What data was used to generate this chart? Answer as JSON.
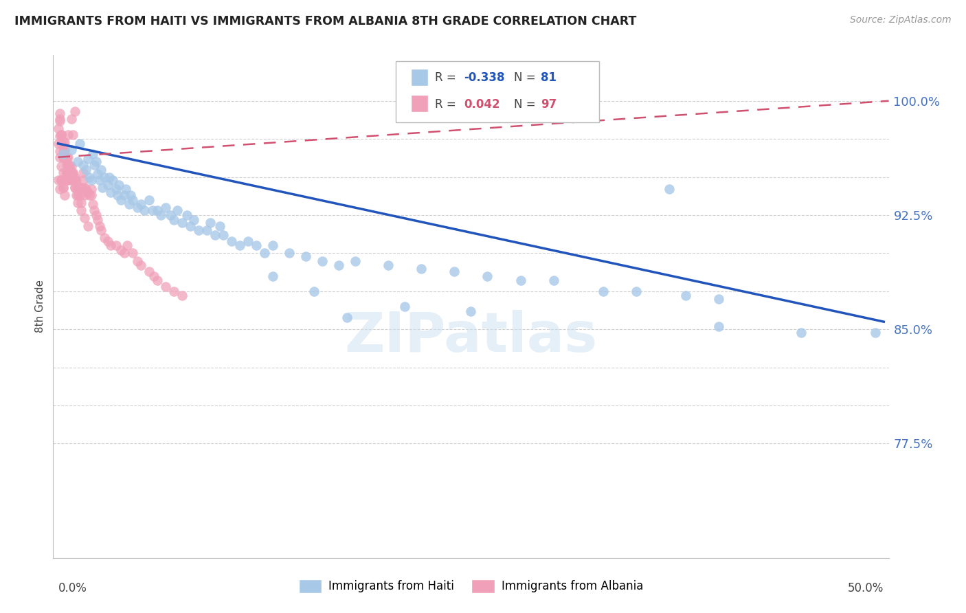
{
  "title": "IMMIGRANTS FROM HAITI VS IMMIGRANTS FROM ALBANIA 8TH GRADE CORRELATION CHART",
  "source": "Source: ZipAtlas.com",
  "ylabel": "8th Grade",
  "watermark": "ZIPatlas",
  "background_color": "#ffffff",
  "grid_color": "#d0d0d0",
  "tick_label_color": "#4472c4",
  "haiti_color": "#a8c8e8",
  "albania_color": "#f0a0b8",
  "haiti_line_color": "#2255bb",
  "albania_line_color": "#d05070",
  "ylim": [
    0.7,
    1.03
  ],
  "xlim": [
    -0.003,
    0.503
  ],
  "ytick_positions": [
    0.775,
    0.8,
    0.825,
    0.85,
    0.875,
    0.9,
    0.925,
    0.95,
    0.975,
    1.0
  ],
  "ytick_labels": [
    "77.5%",
    "",
    "",
    "85.0%",
    "",
    "",
    "92.5%",
    "",
    "",
    "100.0%"
  ],
  "haiti_x": [
    0.003,
    0.008,
    0.012,
    0.013,
    0.015,
    0.017,
    0.018,
    0.019,
    0.02,
    0.021,
    0.022,
    0.023,
    0.024,
    0.025,
    0.026,
    0.027,
    0.028,
    0.03,
    0.031,
    0.032,
    0.033,
    0.035,
    0.036,
    0.037,
    0.038,
    0.04,
    0.041,
    0.043,
    0.044,
    0.045,
    0.048,
    0.05,
    0.052,
    0.055,
    0.057,
    0.06,
    0.062,
    0.065,
    0.068,
    0.07,
    0.072,
    0.075,
    0.078,
    0.08,
    0.082,
    0.085,
    0.09,
    0.092,
    0.095,
    0.098,
    0.1,
    0.105,
    0.11,
    0.115,
    0.12,
    0.125,
    0.13,
    0.14,
    0.15,
    0.16,
    0.17,
    0.18,
    0.2,
    0.22,
    0.24,
    0.26,
    0.28,
    0.3,
    0.33,
    0.35,
    0.38,
    0.4,
    0.13,
    0.155,
    0.175,
    0.21,
    0.25,
    0.4,
    0.45,
    0.495,
    0.37
  ],
  "haiti_y": [
    0.965,
    0.968,
    0.96,
    0.972,
    0.958,
    0.955,
    0.962,
    0.95,
    0.948,
    0.965,
    0.958,
    0.96,
    0.952,
    0.948,
    0.955,
    0.943,
    0.95,
    0.945,
    0.95,
    0.94,
    0.948,
    0.942,
    0.938,
    0.945,
    0.935,
    0.938,
    0.942,
    0.932,
    0.938,
    0.935,
    0.93,
    0.932,
    0.928,
    0.935,
    0.928,
    0.928,
    0.925,
    0.93,
    0.925,
    0.922,
    0.928,
    0.92,
    0.925,
    0.918,
    0.922,
    0.915,
    0.915,
    0.92,
    0.912,
    0.918,
    0.912,
    0.908,
    0.905,
    0.908,
    0.905,
    0.9,
    0.905,
    0.9,
    0.898,
    0.895,
    0.892,
    0.895,
    0.892,
    0.89,
    0.888,
    0.885,
    0.882,
    0.882,
    0.875,
    0.875,
    0.872,
    0.87,
    0.885,
    0.875,
    0.858,
    0.865,
    0.862,
    0.852,
    0.848,
    0.848,
    0.942
  ],
  "albania_x": [
    0.0,
    0.0,
    0.001,
    0.001,
    0.001,
    0.001,
    0.001,
    0.002,
    0.002,
    0.002,
    0.002,
    0.003,
    0.003,
    0.003,
    0.003,
    0.004,
    0.004,
    0.004,
    0.005,
    0.005,
    0.005,
    0.005,
    0.006,
    0.006,
    0.007,
    0.007,
    0.008,
    0.008,
    0.009,
    0.009,
    0.01,
    0.01,
    0.01,
    0.011,
    0.011,
    0.012,
    0.012,
    0.013,
    0.013,
    0.014,
    0.014,
    0.015,
    0.015,
    0.016,
    0.016,
    0.017,
    0.018,
    0.019,
    0.02,
    0.02,
    0.021,
    0.022,
    0.023,
    0.024,
    0.025,
    0.026,
    0.028,
    0.03,
    0.032,
    0.035,
    0.038,
    0.04,
    0.042,
    0.045,
    0.048,
    0.05,
    0.055,
    0.058,
    0.06,
    0.065,
    0.07,
    0.075,
    0.003,
    0.006,
    0.008,
    0.009,
    0.01,
    0.0,
    0.001,
    0.002,
    0.003,
    0.004,
    0.005,
    0.006,
    0.007,
    0.008,
    0.009,
    0.01,
    0.012,
    0.014,
    0.016,
    0.018,
    0.001,
    0.002,
    0.003,
    0.004,
    0.005
  ],
  "albania_y": [
    0.982,
    0.972,
    0.963,
    0.977,
    0.987,
    0.992,
    0.967,
    0.957,
    0.948,
    0.978,
    0.972,
    0.967,
    0.963,
    0.953,
    0.943,
    0.938,
    0.973,
    0.968,
    0.963,
    0.958,
    0.953,
    0.948,
    0.963,
    0.958,
    0.953,
    0.958,
    0.953,
    0.948,
    0.953,
    0.948,
    0.943,
    0.948,
    0.943,
    0.938,
    0.948,
    0.943,
    0.938,
    0.943,
    0.938,
    0.933,
    0.943,
    0.953,
    0.948,
    0.943,
    0.938,
    0.942,
    0.94,
    0.938,
    0.942,
    0.938,
    0.932,
    0.928,
    0.925,
    0.922,
    0.918,
    0.915,
    0.91,
    0.908,
    0.905,
    0.905,
    0.902,
    0.9,
    0.905,
    0.9,
    0.895,
    0.892,
    0.888,
    0.885,
    0.882,
    0.878,
    0.875,
    0.872,
    0.963,
    0.978,
    0.988,
    0.978,
    0.993,
    0.948,
    0.942,
    0.948,
    0.943,
    0.948,
    0.952,
    0.948,
    0.957,
    0.957,
    0.952,
    0.95,
    0.933,
    0.928,
    0.923,
    0.918,
    0.988,
    0.978,
    0.973,
    0.968,
    0.963
  ]
}
